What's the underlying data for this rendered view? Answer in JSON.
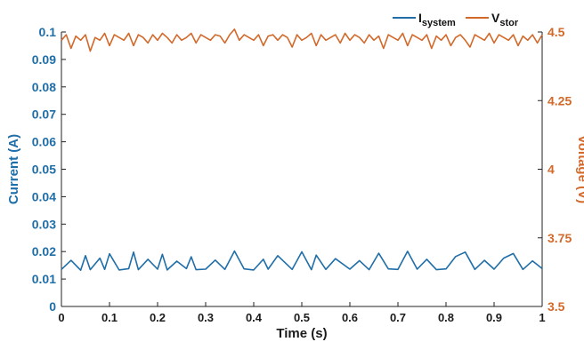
{
  "chart_data": {
    "type": "line",
    "title": "",
    "xlabel": "Time (s)",
    "ylabel": "Current (A)",
    "y2label": "Voltage (V)",
    "xlim": [
      0,
      1
    ],
    "ylim": [
      0,
      0.1
    ],
    "y2lim": [
      3.5,
      4.5
    ],
    "xticks": [
      "0",
      "0.1",
      "0.2",
      "0.3",
      "0.4",
      "0.5",
      "0.6",
      "0.7",
      "0.8",
      "0.9",
      "1"
    ],
    "yticks": [
      "0",
      "0.01",
      "0.02",
      "0.03",
      "0.04",
      "0.05",
      "0.06",
      "0.07",
      "0.08",
      "0.09",
      "0.1"
    ],
    "y2ticks": [
      "3.5",
      "3.75",
      "4",
      "4.25",
      "4.5"
    ],
    "grid": false,
    "legend_position": "top-right",
    "series": [
      {
        "name": "I",
        "name_sub": "system",
        "axis": "left",
        "color": "#1f6ea8",
        "x": [
          0,
          0.02,
          0.04,
          0.05,
          0.06,
          0.08,
          0.09,
          0.1,
          0.12,
          0.14,
          0.15,
          0.16,
          0.18,
          0.2,
          0.21,
          0.22,
          0.24,
          0.26,
          0.27,
          0.28,
          0.3,
          0.32,
          0.34,
          0.36,
          0.38,
          0.4,
          0.42,
          0.43,
          0.45,
          0.48,
          0.5,
          0.52,
          0.53,
          0.55,
          0.57,
          0.6,
          0.62,
          0.64,
          0.66,
          0.68,
          0.7,
          0.72,
          0.74,
          0.76,
          0.78,
          0.8,
          0.82,
          0.84,
          0.86,
          0.88,
          0.9,
          0.92,
          0.94,
          0.96,
          0.98,
          1.0
        ],
        "y": [
          0.0135,
          0.0168,
          0.0132,
          0.0185,
          0.0134,
          0.0176,
          0.0135,
          0.0192,
          0.0133,
          0.0138,
          0.0198,
          0.0134,
          0.0172,
          0.0136,
          0.019,
          0.0133,
          0.0165,
          0.0138,
          0.0181,
          0.0134,
          0.0136,
          0.0169,
          0.0135,
          0.0202,
          0.0137,
          0.0133,
          0.0172,
          0.0136,
          0.0185,
          0.0135,
          0.0199,
          0.0134,
          0.0187,
          0.0135,
          0.0174,
          0.0136,
          0.0167,
          0.0134,
          0.0194,
          0.0137,
          0.0135,
          0.0201,
          0.0136,
          0.0172,
          0.0134,
          0.0137,
          0.0182,
          0.0198,
          0.0135,
          0.0168,
          0.0136,
          0.0176,
          0.0193,
          0.0135,
          0.0166,
          0.0138
        ]
      },
      {
        "name": "V",
        "name_sub": "stor",
        "axis": "right",
        "color": "#d2692a",
        "x": [
          0,
          0.01,
          0.02,
          0.03,
          0.04,
          0.05,
          0.06,
          0.07,
          0.08,
          0.09,
          0.1,
          0.11,
          0.12,
          0.13,
          0.14,
          0.15,
          0.16,
          0.17,
          0.18,
          0.19,
          0.2,
          0.21,
          0.22,
          0.23,
          0.24,
          0.25,
          0.26,
          0.27,
          0.28,
          0.29,
          0.3,
          0.31,
          0.32,
          0.33,
          0.34,
          0.35,
          0.36,
          0.37,
          0.38,
          0.39,
          0.4,
          0.41,
          0.42,
          0.43,
          0.44,
          0.45,
          0.46,
          0.47,
          0.48,
          0.49,
          0.5,
          0.51,
          0.52,
          0.53,
          0.54,
          0.55,
          0.56,
          0.57,
          0.58,
          0.59,
          0.6,
          0.61,
          0.62,
          0.63,
          0.64,
          0.65,
          0.66,
          0.67,
          0.68,
          0.69,
          0.7,
          0.71,
          0.72,
          0.73,
          0.74,
          0.75,
          0.76,
          0.77,
          0.78,
          0.79,
          0.8,
          0.81,
          0.82,
          0.83,
          0.84,
          0.85,
          0.86,
          0.87,
          0.88,
          0.89,
          0.9,
          0.91,
          0.92,
          0.93,
          0.94,
          0.95,
          0.96,
          0.97,
          0.98,
          0.99,
          1.0
        ],
        "y": [
          4.47,
          4.49,
          4.44,
          4.485,
          4.47,
          4.49,
          4.43,
          4.48,
          4.47,
          4.495,
          4.45,
          4.49,
          4.48,
          4.47,
          4.495,
          4.45,
          4.49,
          4.48,
          4.46,
          4.49,
          4.47,
          4.495,
          4.48,
          4.46,
          4.49,
          4.47,
          4.48,
          4.495,
          4.46,
          4.49,
          4.48,
          4.47,
          4.49,
          4.485,
          4.46,
          4.49,
          4.51,
          4.47,
          4.49,
          4.48,
          4.47,
          4.49,
          4.45,
          4.485,
          4.49,
          4.47,
          4.49,
          4.48,
          4.445,
          4.49,
          4.47,
          4.48,
          4.495,
          4.45,
          4.49,
          4.47,
          4.48,
          4.49,
          4.46,
          4.495,
          4.47,
          4.49,
          4.48,
          4.46,
          4.49,
          4.47,
          4.485,
          4.44,
          4.49,
          4.48,
          4.47,
          4.495,
          4.45,
          4.49,
          4.48,
          4.47,
          4.49,
          4.44,
          4.485,
          4.47,
          4.49,
          4.45,
          4.48,
          4.49,
          4.47,
          4.445,
          4.49,
          4.48,
          4.47,
          4.495,
          4.46,
          4.49,
          4.48,
          4.47,
          4.49,
          4.45,
          4.485,
          4.47,
          4.49,
          4.46,
          4.49
        ]
      }
    ]
  }
}
